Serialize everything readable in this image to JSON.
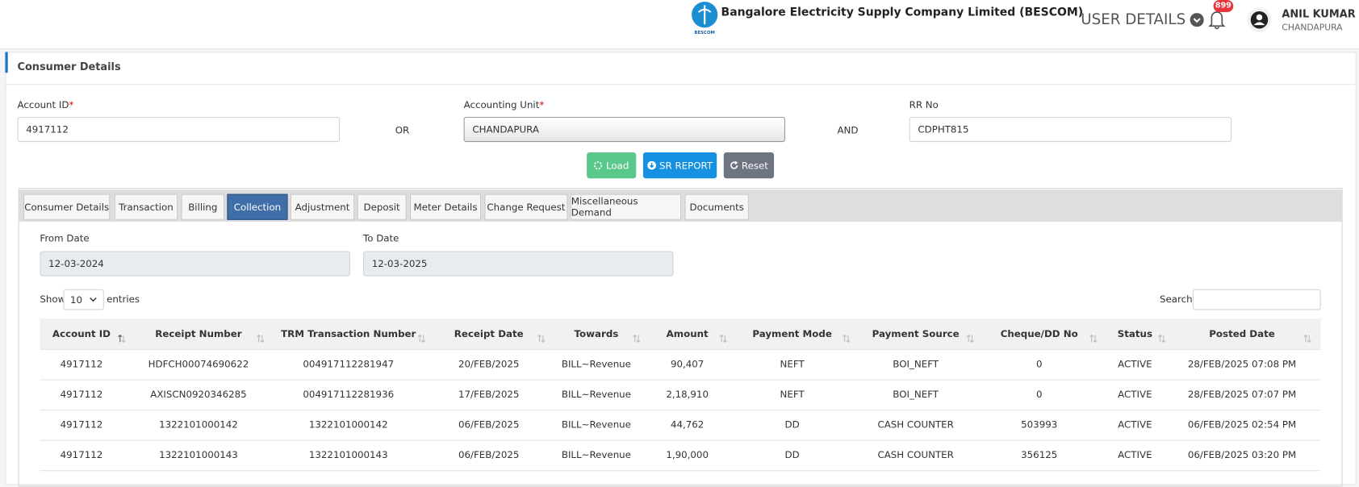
{
  "header": {
    "company": "Bangalore Electricity Supply Company Limited (BESCOM)",
    "logo_text": "BESCOM",
    "user_details": "USER DETAILS",
    "notifications": "899",
    "user_name": "ANIL KUMAR",
    "user_location": "CHANDAPURA"
  },
  "panel": {
    "title": "Consumer Details"
  },
  "form": {
    "account_id": {
      "label": "Account ID",
      "required": "*",
      "value": "4917112"
    },
    "or": "OR",
    "accounting_unit": {
      "label": "Accounting Unit",
      "required": "*",
      "value": "CHANDAPURA"
    },
    "and": "AND",
    "rr_no": {
      "label": "RR No",
      "value": "CDPHT815"
    },
    "buttons": [
      "Load",
      "SR REPORT",
      "Reset"
    ]
  },
  "tabs": [
    "Consumer Details",
    "Transaction",
    "Billing",
    "Collection",
    "Adjustment",
    "Deposit",
    "Meter Details",
    "Change Request",
    "Miscellaneous Demand",
    "Documents"
  ],
  "active_tab": 3,
  "dates": {
    "from_label": "From Date",
    "from_value": "12-03-2024",
    "to_label": "To Date",
    "to_value": "12-03-2025"
  },
  "table_controls": {
    "show": "Show",
    "page_size": "10",
    "entries": "entries",
    "search": "Search:"
  },
  "table": {
    "columns": [
      "Account ID",
      "Receipt Number",
      "TRM Transaction Number",
      "Receipt Date",
      "Towards",
      "Amount",
      "Payment Mode",
      "Payment Source",
      "Cheque/DD No",
      "Status",
      "Posted Date"
    ],
    "rows": [
      [
        "4917112",
        "HDFCH00074690622",
        "004917112281947",
        "20/FEB/2025",
        "BILL~Revenue",
        "90,407",
        "NEFT",
        "BOI_NEFT",
        "0",
        "ACTIVE",
        "28/FEB/2025 07:08 PM"
      ],
      [
        "4917112",
        "AXISCN0920346285",
        "004917112281936",
        "17/FEB/2025",
        "BILL~Revenue",
        "2,18,910",
        "NEFT",
        "BOI_NEFT",
        "0",
        "ACTIVE",
        "28/FEB/2025 07:07 PM"
      ],
      [
        "4917112",
        "1322101000142",
        "1322101000142",
        "06/FEB/2025",
        "BILL~Revenue",
        "44,762",
        "DD",
        "CASH COUNTER",
        "503993",
        "ACTIVE",
        "06/FEB/2025 02:54 PM"
      ],
      [
        "4917112",
        "1322101000143",
        "1322101000143",
        "06/FEB/2025",
        "BILL~Revenue",
        "1,90,000",
        "DD",
        "CASH COUNTER",
        "356125",
        "ACTIVE",
        "06/FEB/2025 03:20 PM"
      ]
    ]
  }
}
